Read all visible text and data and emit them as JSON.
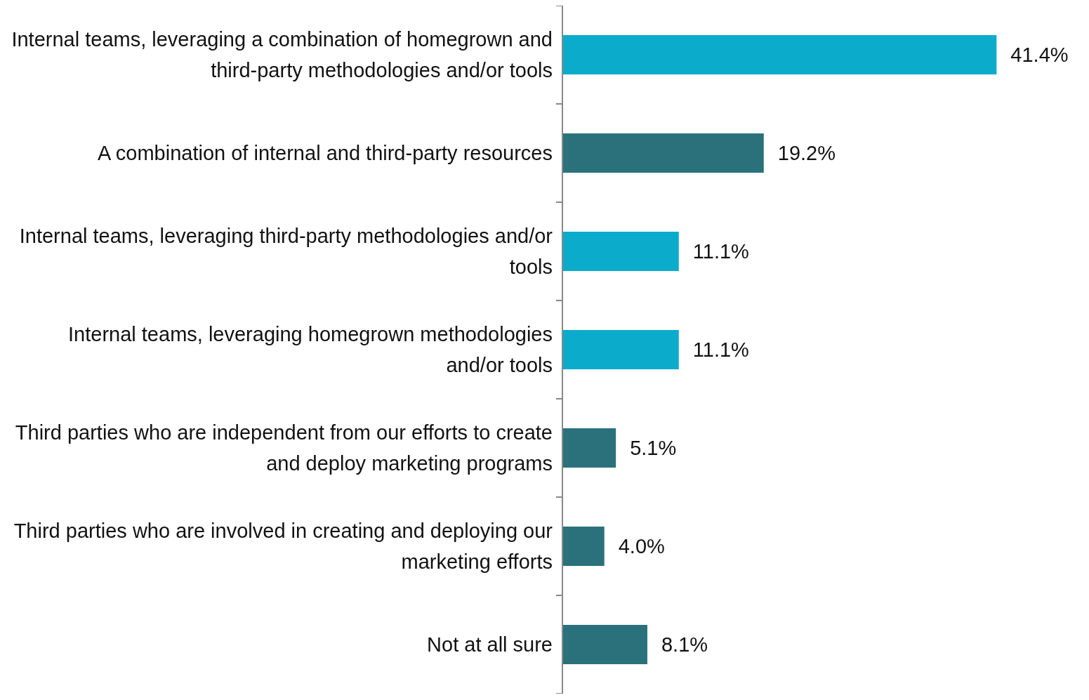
{
  "chart_data": {
    "type": "bar",
    "orientation": "horizontal",
    "relative": false,
    "categories": [
      "Internal teams, leveraging a combination of homegrown and third-party methodologies and/or tools",
      "A combination of internal and third-party resources",
      "Internal teams, leveraging third-party methodologies and/or tools",
      "Internal teams, leveraging homegrown methodologies and/or tools",
      "Third parties who are independent from our efforts to create and deploy marketing programs",
      "Third parties who are involved in creating and deploying our marketing efforts",
      "Not at all sure"
    ],
    "values": [
      41.4,
      19.2,
      11.1,
      11.1,
      5.1,
      4.0,
      8.1
    ],
    "colors": [
      "#0aabcb",
      "#2a717c",
      "#0aabcb",
      "#0aabcb",
      "#2a717c",
      "#2a717c",
      "#2a717c"
    ],
    "value_labels": [
      "41.4%",
      "19.2%",
      "11.1%",
      "11.1%",
      "5.1%",
      "4.0%",
      "8.1%"
    ],
    "data_labels": false
  }
}
